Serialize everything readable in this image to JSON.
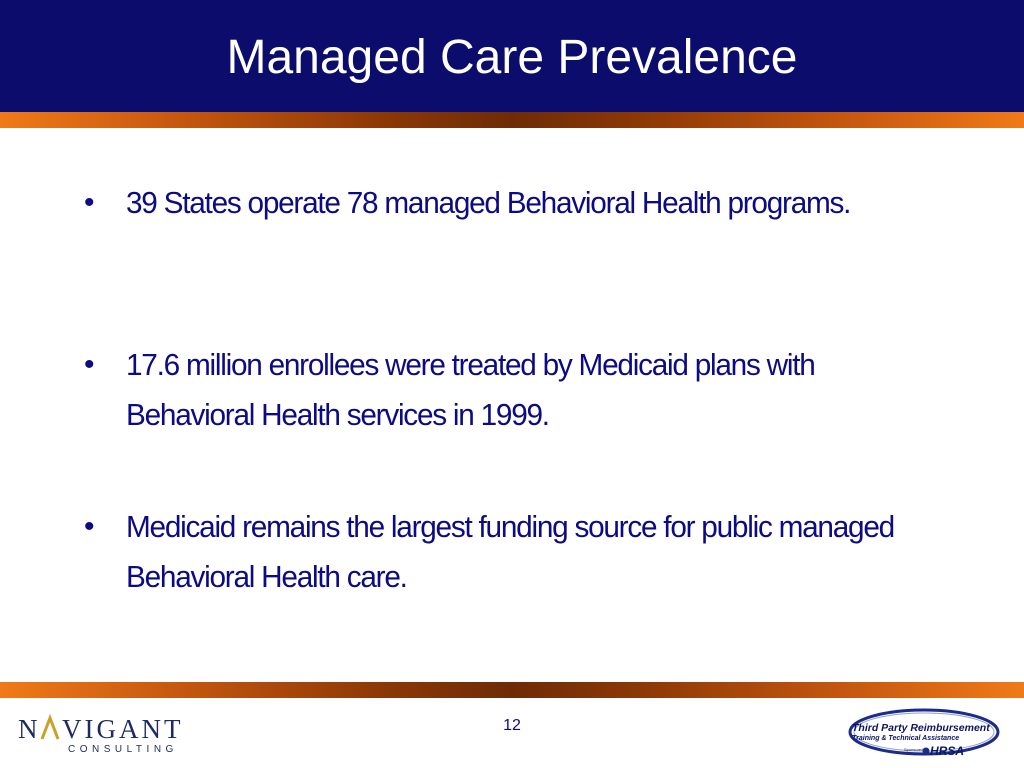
{
  "slide": {
    "title": "Managed Care Prevalence",
    "bullet_symbol": "•",
    "bullets": [
      "39 States operate 78 managed Behavioral Health programs.",
      "17.6 million enrollees were treated by Medicaid plans with Behavioral Health services in 1999.",
      "Medicaid remains the largest funding source for public managed Behavioral Health care."
    ],
    "page_number": "12"
  },
  "footer": {
    "logo_left": {
      "word": "NAVIGANT",
      "tagline": "CONSULTING"
    },
    "logo_right": {
      "title": "Third Party Reimbursement",
      "subtitle": "Training & Technical Assistance",
      "sponsor": "Sponsored by",
      "agency": "HRSA"
    }
  },
  "colors": {
    "header_bg": "#0b0c6b",
    "title_text": "#ffffff",
    "body_text": "#0d0b84",
    "stripe_orange": "#f07a18",
    "stripe_brown": "#6e2c06",
    "logo_navy": "#1d2b5e",
    "logo_gold": "#c9a227"
  }
}
